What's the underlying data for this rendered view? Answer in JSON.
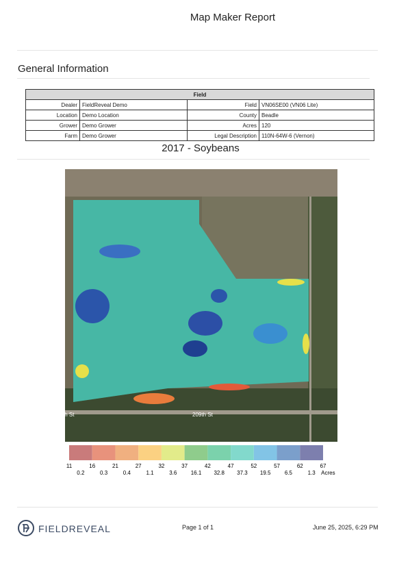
{
  "header": {
    "title": "Map Maker Report"
  },
  "section": {
    "title": "General Information"
  },
  "table": {
    "caption": "Field",
    "rows": [
      [
        "Dealer",
        "FieldReveal Demo",
        "Field",
        "VN06SE00 (VN06 Lite)"
      ],
      [
        "Location",
        "Demo Location",
        "County",
        "Beadle"
      ],
      [
        "Grower",
        "Demo Grower",
        "Acres",
        "120"
      ],
      [
        "Farm",
        "Demo Grower",
        "Legal Description",
        "110N-64W-6 (Vernon)"
      ]
    ]
  },
  "map": {
    "title": "2017 - Soybeans",
    "street_labels": [
      "th St",
      "209th St"
    ]
  },
  "legend": {
    "ticks": [
      "11",
      "16",
      "21",
      "27",
      "32",
      "37",
      "42",
      "47",
      "52",
      "57",
      "62",
      "67"
    ],
    "acres": [
      "0.2",
      "0.3",
      "0.4",
      "1.1",
      "3.6",
      "16.1",
      "32.8",
      "37.3",
      "19.5",
      "6.5",
      "1.3"
    ],
    "unit": "Acres",
    "colors": [
      "#c97b7b",
      "#e8927c",
      "#f0b080",
      "#fbd182",
      "#e2eb8a",
      "#8fcc8c",
      "#7bd2ac",
      "#82d9cc",
      "#82c4e6",
      "#7b9fcb",
      "#7d7fae"
    ]
  },
  "footer": {
    "logo": "FIELDREVEAL",
    "page": "Page 1 of 1",
    "date": "June 25, 2025, 6:29 PM"
  }
}
